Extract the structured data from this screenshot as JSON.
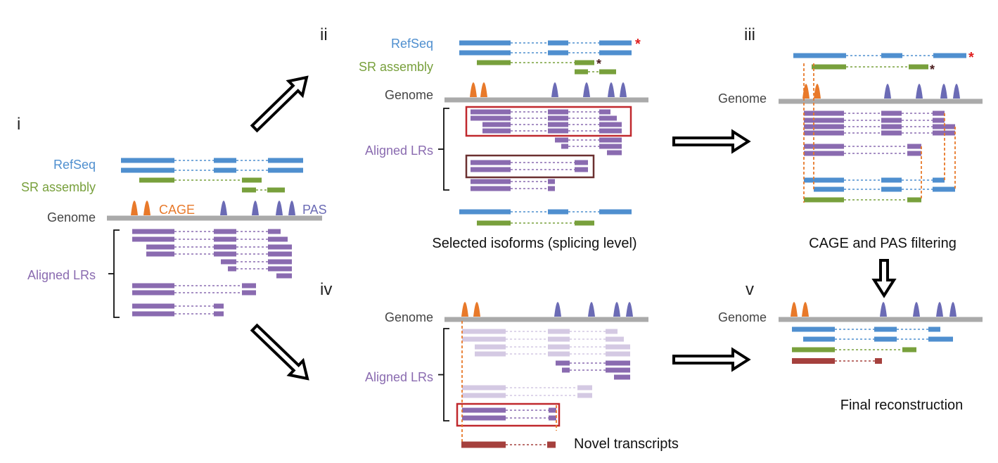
{
  "panels": {
    "i": {
      "numeral": "i",
      "refseq_label": "RefSeq",
      "sr_label": "SR assembly",
      "genome_label": "Genome",
      "cage_label": "CAGE",
      "pas_label": "PAS",
      "aligned_label": "Aligned LRs"
    },
    "ii": {
      "numeral": "ii",
      "refseq_label": "RefSeq",
      "sr_label": "SR assembly",
      "genome_label": "Genome",
      "aligned_label": "Aligned LRs",
      "caption": "Selected isoforms (splicing level)"
    },
    "iii": {
      "numeral": "iii",
      "genome_label": "Genome",
      "caption": "CAGE and PAS filtering"
    },
    "iv": {
      "numeral": "iv",
      "genome_label": "Genome",
      "aligned_label": "Aligned LRs",
      "caption": "Novel transcripts"
    },
    "v": {
      "numeral": "v",
      "genome_label": "Genome",
      "caption": "Final reconstruction"
    }
  },
  "star_glyph": "*",
  "colors": {
    "refseq": "#4f8fcf",
    "sr_assembly": "#78a03c",
    "genome": "#aaaaaa",
    "cage": "#e8792a",
    "pas": "#6b6bb5",
    "aligned_lr": "#8a6bb0",
    "aligned_lr_faded": "#d4c9e3",
    "novel": "#a5403d",
    "box_red": "#c0282d",
    "box_dark": "#6b3030",
    "star_red": "#e02020",
    "star_dark": "#4a1c1c",
    "arrow": "#000000"
  }
}
